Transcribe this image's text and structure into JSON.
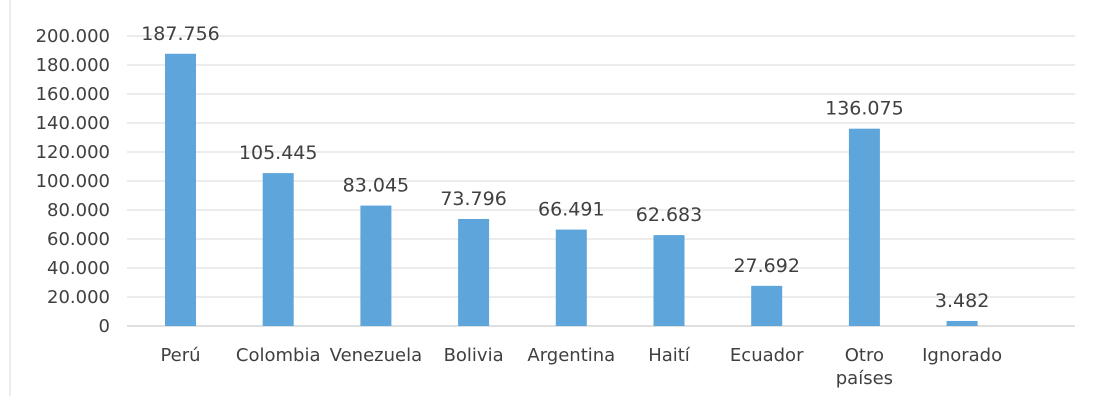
{
  "chart_data": {
    "type": "bar",
    "title": "",
    "xlabel": "",
    "ylabel": "",
    "ylim": [
      0,
      200000
    ],
    "y_ticks": [
      0,
      20000,
      40000,
      60000,
      80000,
      100000,
      120000,
      140000,
      160000,
      180000,
      200000
    ],
    "y_tick_labels": [
      "0",
      "20.000",
      "40.000",
      "60.000",
      "80.000",
      "100.000",
      "120.000",
      "140.000",
      "160.000",
      "180.000",
      "200.000"
    ],
    "grid": true,
    "legend": "none",
    "bar_color": "#5DA5DA",
    "categories": [
      "Perú",
      "Colombia",
      "Venezuela",
      "Bolivia",
      "Argentina",
      "Haití",
      "Ecuador",
      "Otro países",
      "Ignorado"
    ],
    "category_lines": [
      [
        "Perú"
      ],
      [
        "Colombia"
      ],
      [
        "Venezuela"
      ],
      [
        "Bolivia"
      ],
      [
        "Argentina"
      ],
      [
        "Haití"
      ],
      [
        "Ecuador"
      ],
      [
        "Otro",
        "países"
      ],
      [
        "Ignorado"
      ]
    ],
    "values": [
      187756,
      105445,
      83045,
      73796,
      66491,
      62683,
      27692,
      136075,
      3482
    ],
    "data_labels": [
      "187.756",
      "105.445",
      "83.045",
      "73.796",
      "66.491",
      "62.683",
      "27.692",
      "136.075",
      "3.482"
    ]
  }
}
